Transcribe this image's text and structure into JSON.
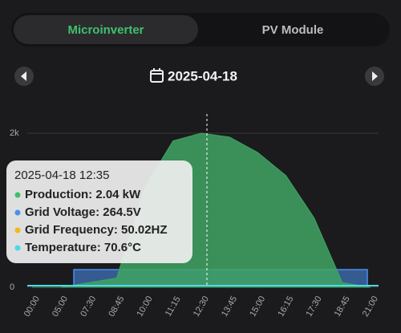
{
  "tabs": [
    "Microinverter",
    "PV Module"
  ],
  "date": "2025-04-18",
  "chart_data": {
    "type": "area",
    "categories": [
      "00:00",
      "05:00",
      "07:30",
      "08:45",
      "10:00",
      "11:15",
      "12:30",
      "13:45",
      "15:00",
      "16:15",
      "17:30",
      "18:45",
      "21:00"
    ],
    "series": [
      {
        "name": "Production",
        "color": "#3fa463",
        "values": [
          0,
          0,
          60,
          120,
          1300,
          1900,
          2000,
          1950,
          1750,
          1450,
          900,
          60,
          0
        ]
      }
    ],
    "ylim": [
      0,
      2000
    ],
    "yticks": [
      0,
      {
        "value": 2000,
        "label": "2k"
      }
    ],
    "grid": true
  },
  "tooltip": {
    "title": "2025-04-18 12:35",
    "items": [
      {
        "text": "Production: 2.04 kW",
        "color": "#3fbf6a"
      },
      {
        "text": "Grid Voltage: 264.5V",
        "color": "#4a90f0"
      },
      {
        "text": "Grid Frequency: 50.02HZ",
        "color": "#f2b81c"
      },
      {
        "text": "Temperature: 70.6°C",
        "color": "#4fd8e8"
      }
    ]
  }
}
